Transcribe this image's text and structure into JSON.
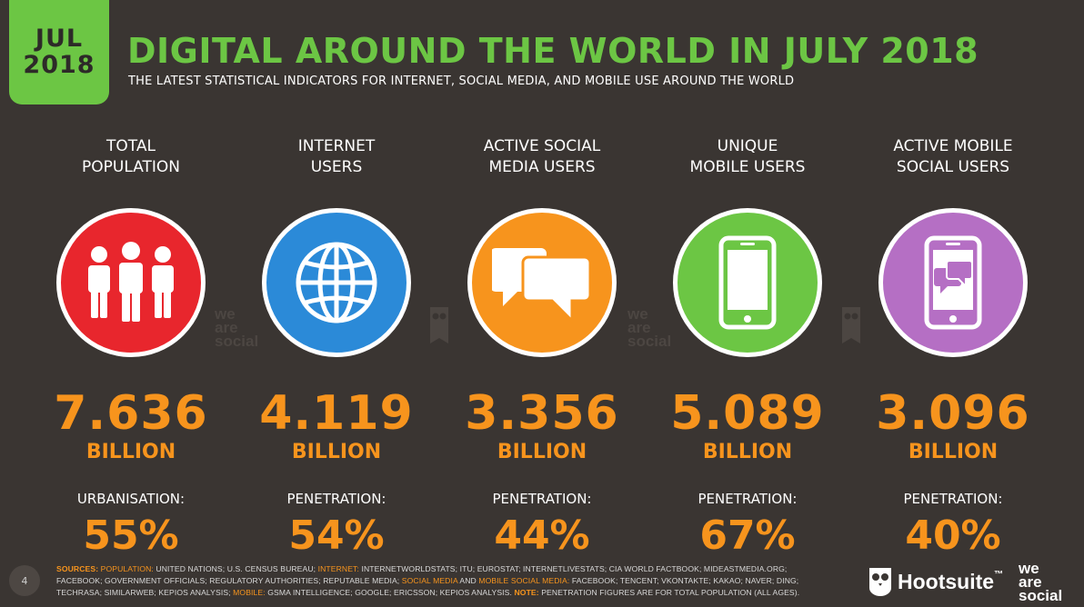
{
  "badge": {
    "month": "JUL",
    "year": "2018"
  },
  "header": {
    "title": "DIGITAL AROUND THE WORLD IN JULY 2018",
    "subtitle": "THE LATEST STATISTICAL INDICATORS FOR INTERNET, SOCIAL MEDIA, AND MOBILE USE AROUND THE WORLD"
  },
  "columns": [
    {
      "label_line1": "TOTAL",
      "label_line2": "POPULATION",
      "icon": "people-icon",
      "color": "#e8262d",
      "value": "7.636",
      "unit": "BILLION",
      "sublabel": "URBANISATION:",
      "pct": "55%"
    },
    {
      "label_line1": "INTERNET",
      "label_line2": "USERS",
      "icon": "globe-icon",
      "color": "#2b8ad8",
      "value": "4.119",
      "unit": "BILLION",
      "sublabel": "PENETRATION:",
      "pct": "54%"
    },
    {
      "label_line1": "ACTIVE SOCIAL",
      "label_line2": "MEDIA USERS",
      "icon": "chat-bubbles-icon",
      "color": "#f7941d",
      "value": "3.356",
      "unit": "BILLION",
      "sublabel": "PENETRATION:",
      "pct": "44%"
    },
    {
      "label_line1": "UNIQUE",
      "label_line2": "MOBILE USERS",
      "icon": "mobile-phone-icon",
      "color": "#6cc644",
      "value": "5.089",
      "unit": "BILLION",
      "sublabel": "PENETRATION:",
      "pct": "67%"
    },
    {
      "label_line1": "ACTIVE MOBILE",
      "label_line2": "SOCIAL USERS",
      "icon": "mobile-chat-icon",
      "color": "#b56fc4",
      "value": "3.096",
      "unit": "BILLION",
      "sublabel": "PENETRATION:",
      "pct": "40%"
    }
  ],
  "watermark": {
    "line1": "we",
    "line2": "are",
    "line3": "social"
  },
  "footer": {
    "page_number": "4",
    "sources_label": "SOURCES:",
    "population_label": "POPULATION:",
    "population_text": "UNITED NATIONS; U.S. CENSUS BUREAU;",
    "internet_label": "INTERNET:",
    "internet_text": "INTERNETWORLDSTATS; ITU; EUROSTAT; INTERNETLIVESTATS; CIA WORLD FACTBOOK; MIDEASTMEDIA.ORG;",
    "line2_text": "FACEBOOK; GOVERNMENT OFFICIALS; REGULATORY AUTHORITIES; REPUTABLE MEDIA;",
    "social_label": "SOCIAL MEDIA",
    "and_text": "AND",
    "mobile_social_label": "MOBILE SOCIAL MEDIA:",
    "social_text": "FACEBOOK; TENCENT; VKONTAKTE; KAKAO; NAVER; DING;",
    "line3_text": "TECHRASA; SIMILARWEB; KEPIOS ANALYSIS;",
    "mobile_label": "MOBILE:",
    "mobile_text": "GSMA INTELLIGENCE; GOOGLE; ERICSSON; KEPIOS ANALYSIS.",
    "note_label": "NOTE:",
    "note_text": "PENETRATION FIGURES ARE FOR TOTAL POPULATION (ALL AGES).",
    "hootsuite": "Hootsuite",
    "tm": "™"
  }
}
